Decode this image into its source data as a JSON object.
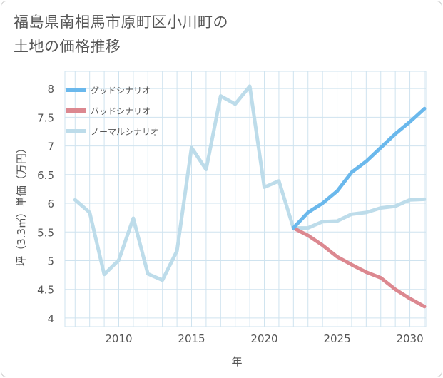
{
  "chart_data": {
    "type": "line",
    "title_lines": [
      "福島県南相馬市原町区小川町の",
      "土地の価格推移"
    ],
    "xlabel": "年",
    "ylabel": "坪（3.3㎡）単価（万円）",
    "xlim": [
      2006.3,
      2031.1
    ],
    "ylim": [
      3.85,
      8.3
    ],
    "x_ticks": [
      2010,
      2015,
      2020,
      2025,
      2030
    ],
    "y_ticks": [
      4,
      4.5,
      5,
      5.5,
      6,
      6.5,
      7,
      7.5,
      8
    ],
    "grid": true,
    "legend_position": "top-left",
    "series": [
      {
        "name": "グッドシナリオ",
        "color": "#6ab8ec",
        "x": [
          2022,
          2023,
          2024,
          2025,
          2026,
          2027,
          2028,
          2029,
          2030,
          2031
        ],
        "values": [
          5.57,
          5.84,
          6.0,
          6.21,
          6.54,
          6.73,
          6.97,
          7.21,
          7.42,
          7.65
        ]
      },
      {
        "name": "バッドシナリオ",
        "color": "#dc8890",
        "x": [
          2022,
          2023,
          2024,
          2025,
          2026,
          2027,
          2028,
          2029,
          2030,
          2031
        ],
        "values": [
          5.57,
          5.44,
          5.27,
          5.07,
          4.93,
          4.8,
          4.7,
          4.5,
          4.34,
          4.2
        ]
      },
      {
        "name": "ノーマルシナリオ",
        "color": "#bddcea",
        "x": [
          2007,
          2008,
          2009,
          2010,
          2011,
          2012,
          2013,
          2014,
          2015,
          2016,
          2017,
          2018,
          2019,
          2020,
          2021,
          2022,
          2023,
          2024,
          2025,
          2026,
          2027,
          2028,
          2029,
          2030,
          2031
        ],
        "values": [
          6.06,
          5.84,
          4.76,
          5.01,
          5.74,
          4.77,
          4.66,
          5.17,
          6.97,
          6.59,
          7.87,
          7.73,
          8.04,
          6.28,
          6.39,
          5.57,
          5.57,
          5.68,
          5.69,
          5.81,
          5.84,
          5.92,
          5.95,
          6.06,
          6.07
        ]
      }
    ]
  }
}
